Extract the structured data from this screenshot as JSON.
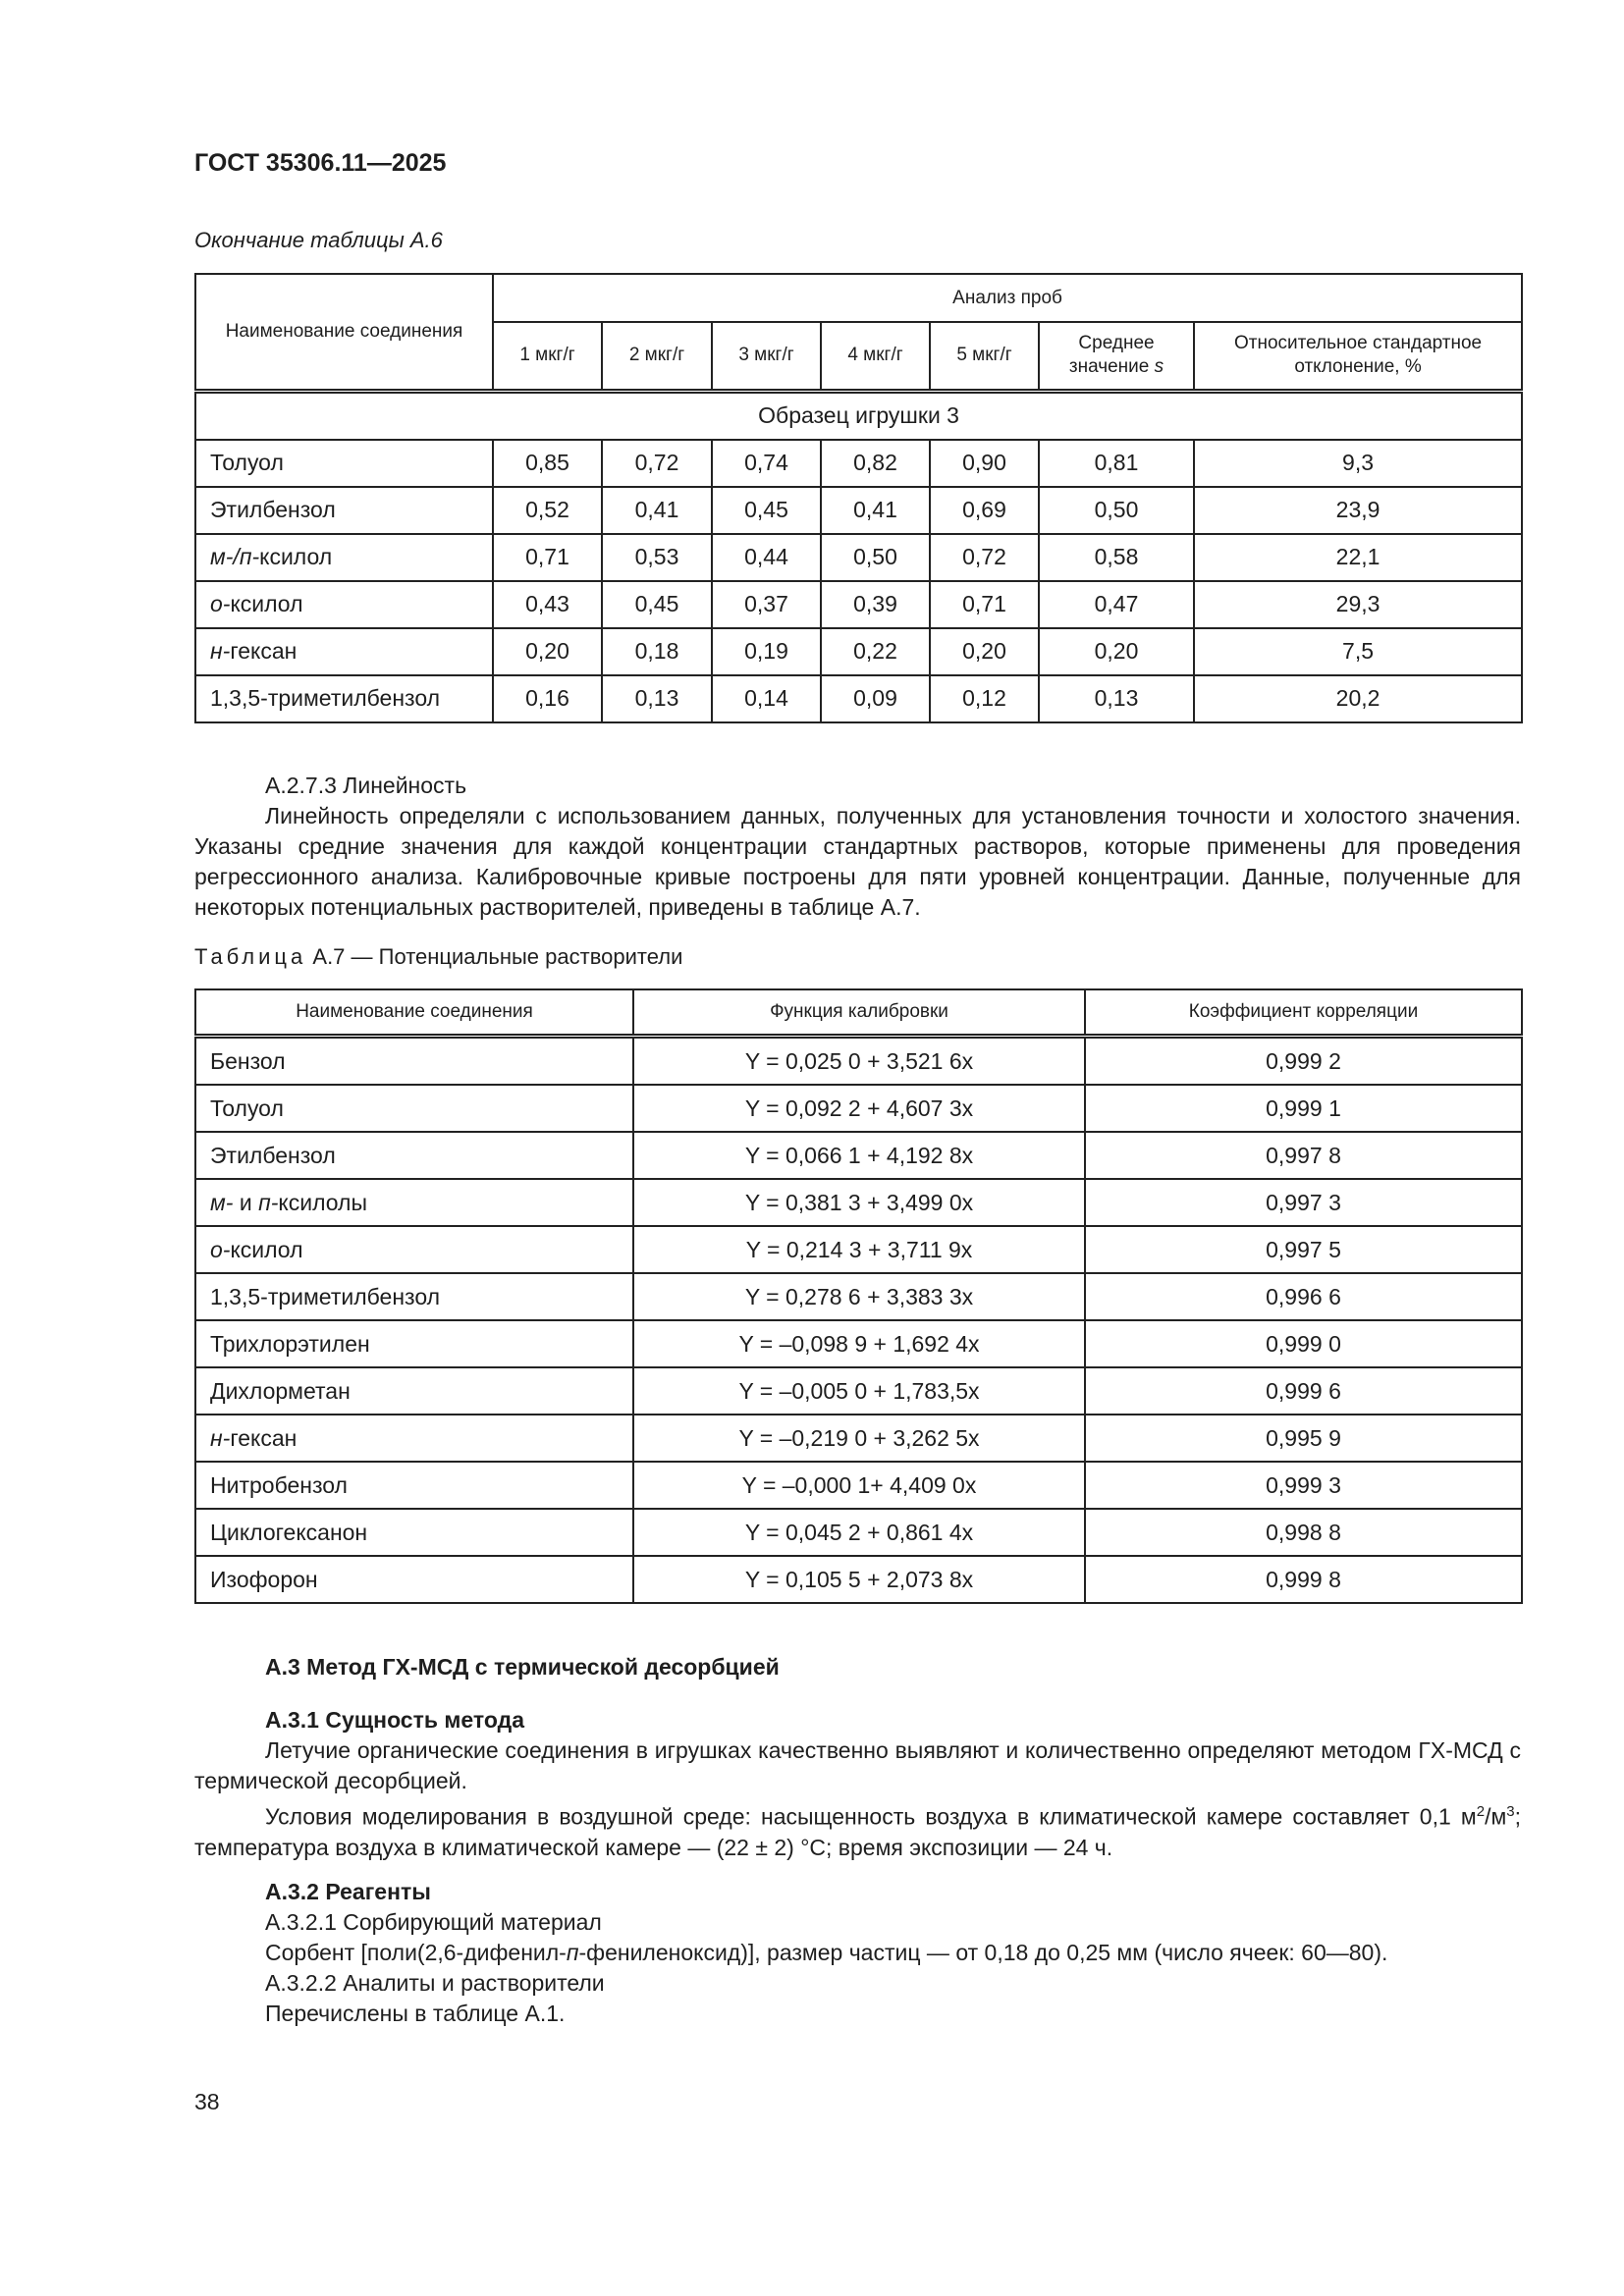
{
  "header": {
    "doc_id": "ГОСТ 35306.11—2025"
  },
  "table_a6": {
    "continuation_label": "Окончание таблицы А.6",
    "col_name": "Наименование соединения",
    "group_header": "Анализ проб",
    "columns": [
      "1 мкг/г",
      "2 мкг/г",
      "3 мкг/г",
      "4 мкг/г",
      "5 мкг/г",
      "Среднее значение s",
      "Относительное стандартное отклонение, %"
    ],
    "section": "Образец игрушки 3",
    "rows": [
      {
        "prefix": "",
        "name": "Толуол",
        "values": [
          "0,85",
          "0,72",
          "0,74",
          "0,82",
          "0,90",
          "0,81",
          "9,3"
        ]
      },
      {
        "prefix": "",
        "name": "Этилбензол",
        "values": [
          "0,52",
          "0,41",
          "0,45",
          "0,41",
          "0,69",
          "0,50",
          "23,9"
        ]
      },
      {
        "prefix": "м-/п-",
        "name": "ксилол",
        "values": [
          "0,71",
          "0,53",
          "0,44",
          "0,50",
          "0,72",
          "0,58",
          "22,1"
        ]
      },
      {
        "prefix": "о-",
        "name": "ксилол",
        "values": [
          "0,43",
          "0,45",
          "0,37",
          "0,39",
          "0,71",
          "0,47",
          "29,3"
        ]
      },
      {
        "prefix": "н-",
        "name": "гексан",
        "values": [
          "0,20",
          "0,18",
          "0,19",
          "0,22",
          "0,20",
          "0,20",
          "7,5"
        ]
      },
      {
        "prefix": "",
        "name": "1,3,5-триметилбензол",
        "values": [
          "0,16",
          "0,13",
          "0,14",
          "0,09",
          "0,12",
          "0,13",
          "20,2"
        ]
      }
    ]
  },
  "section_a273": {
    "heading": "А.2.7.3 Линейность",
    "text": "Линейность определяли с использованием данных, полученных для установления точности и холостого значения. Указаны средние значения для каждой концентрации стандартных растворов, которые применены для проведения регрессионного анализа. Калибровочные кривые построены для пяти уровней концентрации. Данные, полученные для некоторых потенциальных растворителей, приведены в таблице А.7."
  },
  "table_a7": {
    "caption_label": "Таблица",
    "caption_text": "А.7 — Потенциальные растворители",
    "columns": [
      "Наименование соединения",
      "Функция калибровки",
      "Коэффициент корреляции"
    ],
    "rows": [
      {
        "prefix": "",
        "name": "Бензол",
        "func": "Y = 0,025 0 + 3,521 6x",
        "r": "0,999 2"
      },
      {
        "prefix": "",
        "name": "Толуол",
        "func": "Y = 0,092 2 + 4,607 3x",
        "r": "0,999 1"
      },
      {
        "prefix": "",
        "name": "Этилбензол",
        "func": "Y = 0,066 1 + 4,192 8x",
        "r": "0,997 8"
      },
      {
        "prefix": "м- и п-",
        "name": "ксилолы",
        "func": "Y = 0,381 3 + 3,499 0x",
        "r": "0,997 3"
      },
      {
        "prefix": "о-",
        "name": "ксилол",
        "func": "Y = 0,214 3 + 3,711 9x",
        "r": "0,997 5"
      },
      {
        "prefix": "",
        "name": "1,3,5-триметилбензол",
        "func": "Y = 0,278 6 + 3,383 3x",
        "r": "0,996 6"
      },
      {
        "prefix": "",
        "name": "Трихлорэтилен",
        "func": "Y = –0,098 9 + 1,692 4x",
        "r": "0,999 0"
      },
      {
        "prefix": "",
        "name": "Дихлорметан",
        "func": "Y = –0,005 0 + 1,783,5x",
        "r": "0,999 6"
      },
      {
        "prefix": "н-",
        "name": "гексан",
        "func": "Y = –0,219 0 + 3,262 5x",
        "r": "0,995 9"
      },
      {
        "prefix": "",
        "name": "Нитробензол",
        "func": "Y = –0,000 1+ 4,409 0x",
        "r": "0,999 3"
      },
      {
        "prefix": "",
        "name": "Циклогексанон",
        "func": "Y = 0,045 2 + 0,861 4x",
        "r": "0,998 8"
      },
      {
        "prefix": "",
        "name": "Изофорон",
        "func": "Y = 0,105 5 + 2,073 8x",
        "r": "0,999 8"
      }
    ]
  },
  "section_a3": {
    "heading": "А.3 Метод ГХ-МСД с термической десорбцией",
    "a31_heading": "А.3.1 Сущность метода",
    "a31_p1": "Летучие органические соединения в игрушках качественно выявляют и количественно определяют методом ГХ-МСД с термической десорбцией.",
    "a31_p2_a": "Условия моделирования в воздушной среде: насыщенность воздуха в климатической камере составляет 0,1 м",
    "a31_p2_sup1": "2",
    "a31_p2_b": "/м",
    "a31_p2_sup2": "3",
    "a31_p2_c": "; температура воздуха в климатической камере — (22 ± 2) °С; время экспозиции — 24 ч.",
    "a32_heading": "А.3.2 Реагенты",
    "a321": "А.3.2.1 Сорбирующий материал",
    "a321_text_a": "Сорбент [поли(2,6-дифенил-",
    "a321_text_italic": "п",
    "a321_text_b": "-фениленоксид)], размер частиц — от 0,18 до 0,25 мм (число ячеек: 60—80).",
    "a322": "А.3.2.2 Аналиты и растворители",
    "a322_text": "Перечислены в таблице А.1."
  },
  "footer": {
    "page_number": "38"
  }
}
